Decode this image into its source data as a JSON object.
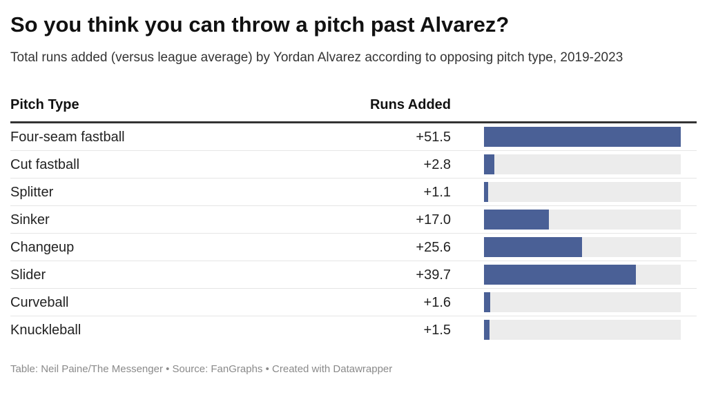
{
  "title": "So you think you can throw a pitch past Alvarez?",
  "subtitle": "Total runs added (versus league average) by Yordan Alvarez according to opposing pitch type, 2019-2023",
  "footer": "Table: Neil Paine/The Messenger • Source: FanGraphs • Created with Datawrapper",
  "colors": {
    "bar": "#4a6096",
    "track": "#ececec"
  },
  "chart_data": {
    "type": "table",
    "columns": [
      "Pitch Type",
      "Runs Added"
    ],
    "xlim": [
      0,
      51.5
    ],
    "rows": [
      {
        "pitch": "Four-seam fastball",
        "runs": 51.5,
        "label": "+51.5"
      },
      {
        "pitch": "Cut fastball",
        "runs": 2.8,
        "label": "+2.8"
      },
      {
        "pitch": "Splitter",
        "runs": 1.1,
        "label": "+1.1"
      },
      {
        "pitch": "Sinker",
        "runs": 17.0,
        "label": "+17.0"
      },
      {
        "pitch": "Changeup",
        "runs": 25.6,
        "label": "+25.6"
      },
      {
        "pitch": "Slider",
        "runs": 39.7,
        "label": "+39.7"
      },
      {
        "pitch": "Curveball",
        "runs": 1.6,
        "label": "+1.6"
      },
      {
        "pitch": "Knuckleball",
        "runs": 1.5,
        "label": "+1.5"
      }
    ]
  }
}
